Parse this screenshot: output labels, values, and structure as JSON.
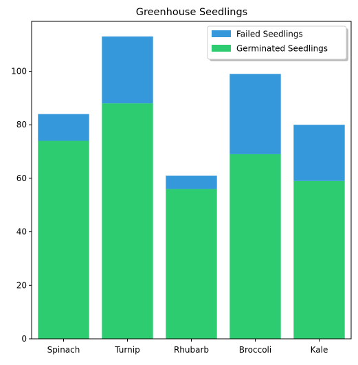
{
  "chart_data": {
    "type": "bar",
    "stacked": true,
    "title": "Greenhouse Seedlings",
    "xlabel": "",
    "ylabel": "",
    "categories": [
      "Spinach",
      "Turnip",
      "Rhubarb",
      "Broccoli",
      "Kale"
    ],
    "series": [
      {
        "name": "Germinated Seedlings",
        "values": [
          74,
          88,
          56,
          69,
          59
        ],
        "color": "#2ecc71"
      },
      {
        "name": "Failed Seedlings",
        "values": [
          10,
          25,
          5,
          30,
          21
        ],
        "color": "#3498db"
      }
    ],
    "ylim": [
      0,
      118.65
    ],
    "yticks": [
      0,
      20,
      40,
      60,
      80,
      100
    ],
    "legend": {
      "placement": "top-right",
      "entries": [
        "Failed Seedlings",
        "Germinated Seedlings"
      ]
    },
    "grid": false
  }
}
